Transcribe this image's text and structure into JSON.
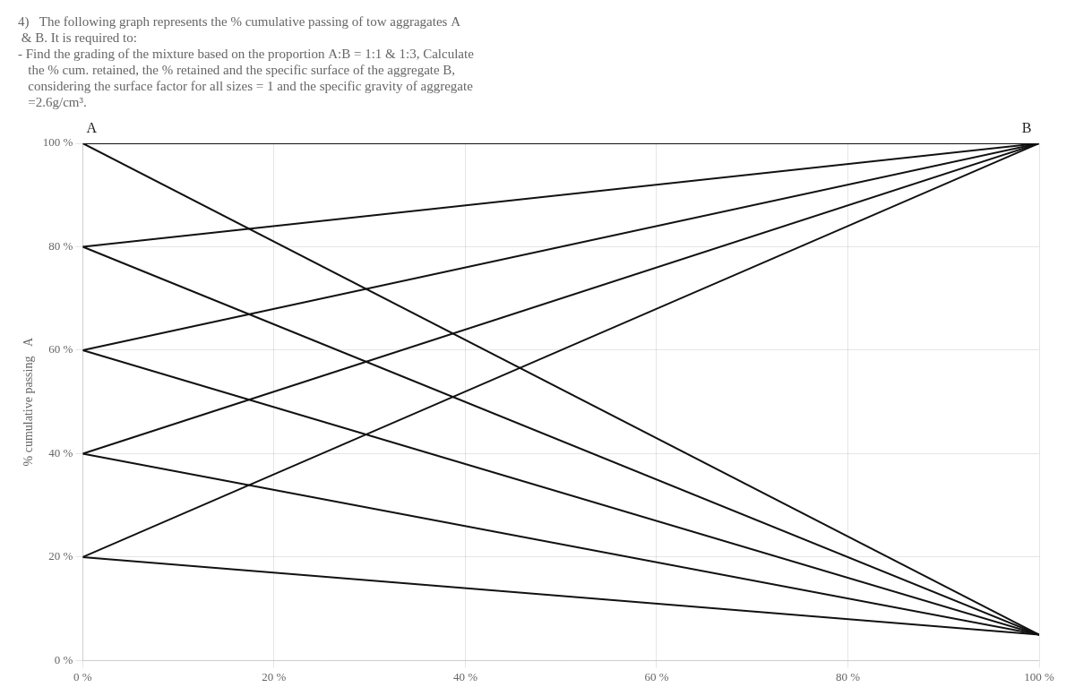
{
  "chart_data": {
    "type": "line",
    "title": [
      "4)   The following graph represents the % cumulative passing of tow aggragates A",
      " & B. It is required to:",
      "- Find the grading of the mixture based on the proportion A:B = 1:1 & 1:3, Calculate",
      "   the % cum. retained, the % retained and the specific surface of the aggregate B,",
      "   considering the surface factor for all sizes = 1 and the specific gravity of aggregate",
      "   =2.6g/cm³."
    ],
    "y_label": "% cumulative passing   A",
    "annotations": [
      {
        "text": "A"
      },
      {
        "text": "B"
      }
    ],
    "xlim": [
      0,
      100
    ],
    "ylim": [
      0,
      100
    ],
    "xticks": [
      {
        "value": 0,
        "label": "0 %"
      },
      {
        "value": 20,
        "label": "20 %"
      },
      {
        "value": 40,
        "label": "40 %"
      },
      {
        "value": 60,
        "label": "60 %"
      },
      {
        "value": 80,
        "label": "80 %"
      },
      {
        "value": 100,
        "label": "100 %"
      }
    ],
    "yticks": [
      {
        "value": 0,
        "label": "0 %"
      },
      {
        "value": 20,
        "label": "20 %"
      },
      {
        "value": 40,
        "label": "40 %"
      },
      {
        "value": 60,
        "label": "60 %"
      },
      {
        "value": 80,
        "label": "80 %"
      },
      {
        "value": 100,
        "label": "100 %"
      }
    ],
    "grid": true,
    "series": [
      {
        "x": [
          0,
          100
        ],
        "values": [
          20,
          100
        ],
        "color": "#111111"
      },
      {
        "x": [
          0,
          100
        ],
        "values": [
          40,
          100
        ],
        "color": "#111111"
      },
      {
        "x": [
          0,
          100
        ],
        "values": [
          60,
          100
        ],
        "color": "#111111"
      },
      {
        "x": [
          0,
          100
        ],
        "values": [
          80,
          100
        ],
        "color": "#111111"
      },
      {
        "x": [
          0,
          100
        ],
        "values": [
          100,
          100
        ],
        "color": "#111111"
      },
      {
        "x": [
          0,
          100
        ],
        "values": [
          20,
          5
        ],
        "color": "#111111"
      },
      {
        "x": [
          0,
          100
        ],
        "values": [
          40,
          5
        ],
        "color": "#111111"
      },
      {
        "x": [
          0,
          100
        ],
        "values": [
          60,
          5
        ],
        "color": "#111111"
      },
      {
        "x": [
          0,
          100
        ],
        "values": [
          80,
          5
        ],
        "color": "#111111"
      },
      {
        "x": [
          0,
          100
        ],
        "values": [
          100,
          5
        ],
        "color": "#111111"
      }
    ]
  }
}
